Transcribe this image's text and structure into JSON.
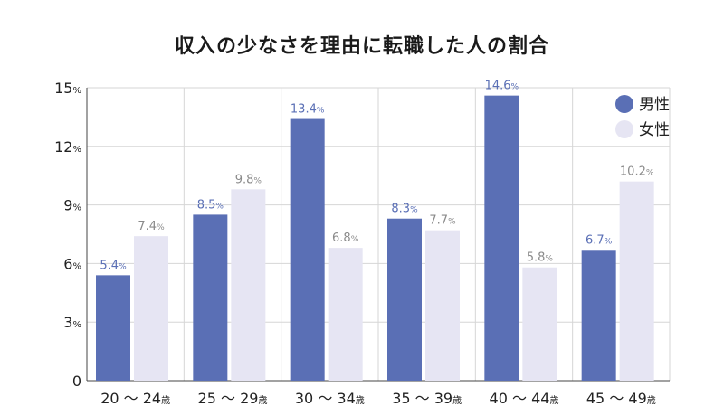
{
  "chart_data": {
    "type": "bar",
    "title": "収入の少なさを理由に転職した人の割合",
    "categories": [
      "20 〜 24",
      "25 〜 29",
      "30 〜 34",
      "35 〜 39",
      "40 〜 44",
      "45 〜 49"
    ],
    "category_suffix": "歳",
    "series": [
      {
        "name": "男性",
        "values": [
          5.4,
          8.5,
          13.4,
          8.3,
          14.6,
          6.7
        ],
        "color": "#5a6fb5"
      },
      {
        "name": "女性",
        "values": [
          7.4,
          9.8,
          6.8,
          7.7,
          5.8,
          10.2
        ],
        "color": "#e6e5f3"
      }
    ],
    "value_unit": "%",
    "ylim": [
      0,
      15
    ],
    "yticks": [
      0,
      3,
      6,
      9,
      12,
      15
    ],
    "grid": true,
    "legend_position": "top-right",
    "label_colors": {
      "男性": "#5a6fb5",
      "女性": "#8a8a8a"
    }
  }
}
